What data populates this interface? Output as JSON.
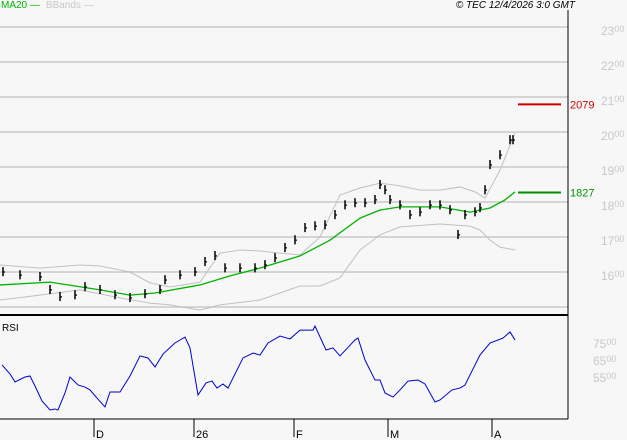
{
  "legend": {
    "ma": "MA20",
    "bb": "BBands"
  },
  "copyright": "© TEC 12/4/2026 3:0 GMT",
  "colors": {
    "ma": "#00b400",
    "bands": "#c0c0c0",
    "bars": "#000000",
    "rsi": "#0000d0",
    "resistance": "#cc0000",
    "support": "#009000"
  },
  "chart_data": {
    "type": "bar",
    "title": "",
    "price_axis": {
      "ylim": [
        1500,
        2300
      ],
      "ticks": [
        "2300",
        "2200",
        "2100",
        "2000",
        "1900",
        "1800",
        "1700",
        "1600"
      ]
    },
    "x_labels": [
      {
        "label": "D",
        "index": 23.5
      },
      {
        "label": "26",
        "index": 48.5
      },
      {
        "label": "F",
        "index": 73.5
      },
      {
        "label": "M",
        "index": 97
      },
      {
        "label": "A",
        "index": 123
      }
    ],
    "closes": [
      [
        0.75,
        1600
      ],
      [
        5,
        1591
      ],
      [
        10,
        1586
      ],
      [
        12.5,
        1549
      ],
      [
        15,
        1529
      ],
      [
        18.75,
        1534
      ],
      [
        21.25,
        1557
      ],
      [
        25,
        1549
      ],
      [
        28.75,
        1534
      ],
      [
        32.5,
        1526
      ],
      [
        36.25,
        1537
      ],
      [
        40,
        1549
      ],
      [
        41.25,
        1577
      ],
      [
        45,
        1591
      ],
      [
        48.75,
        1600
      ],
      [
        51.25,
        1629
      ],
      [
        53.75,
        1646
      ],
      [
        56.25,
        1611
      ],
      [
        60,
        1611
      ],
      [
        63.75,
        1611
      ],
      [
        66.25,
        1620
      ],
      [
        68.75,
        1640
      ],
      [
        71.25,
        1669
      ],
      [
        73.75,
        1691
      ],
      [
        76.25,
        1726
      ],
      [
        78.75,
        1731
      ],
      [
        81.25,
        1734
      ],
      [
        83.75,
        1763
      ],
      [
        86.25,
        1791
      ],
      [
        88.75,
        1797
      ],
      [
        91.25,
        1797
      ],
      [
        93.75,
        1806
      ],
      [
        95,
        1849
      ],
      [
        96.25,
        1834
      ],
      [
        97.5,
        1806
      ],
      [
        100,
        1791
      ],
      [
        102.5,
        1763
      ],
      [
        105,
        1771
      ],
      [
        107.5,
        1791
      ],
      [
        110,
        1791
      ],
      [
        112.5,
        1777
      ],
      [
        114.5,
        1706
      ],
      [
        116.25,
        1763
      ],
      [
        118.75,
        1771
      ],
      [
        120,
        1783
      ],
      [
        121.25,
        1834
      ],
      [
        122.5,
        1906
      ],
      [
        125,
        1934
      ],
      [
        127.5,
        1977
      ],
      [
        128.25,
        1977
      ]
    ],
    "ma20": [
      [
        0,
        1563
      ],
      [
        12.5,
        1571
      ],
      [
        25,
        1549
      ],
      [
        32.5,
        1534
      ],
      [
        38.75,
        1540
      ],
      [
        50,
        1563
      ],
      [
        57.5,
        1589
      ],
      [
        65,
        1611
      ],
      [
        75,
        1646
      ],
      [
        82.5,
        1691
      ],
      [
        90,
        1754
      ],
      [
        95,
        1777
      ],
      [
        100,
        1786
      ],
      [
        110,
        1786
      ],
      [
        117.5,
        1771
      ],
      [
        122.5,
        1783
      ],
      [
        126.25,
        1806
      ],
      [
        128.75,
        1829
      ]
    ],
    "bb_upper": [
      [
        0,
        1620
      ],
      [
        10,
        1611
      ],
      [
        20,
        1620
      ],
      [
        25,
        1617
      ],
      [
        32.5,
        1600
      ],
      [
        37.5,
        1569
      ],
      [
        42.5,
        1557
      ],
      [
        50,
        1571
      ],
      [
        55,
        1654
      ],
      [
        60,
        1663
      ],
      [
        65,
        1660
      ],
      [
        70,
        1654
      ],
      [
        75,
        1649
      ],
      [
        80,
        1700
      ],
      [
        85,
        1820
      ],
      [
        90,
        1840
      ],
      [
        95,
        1854
      ],
      [
        100,
        1846
      ],
      [
        105,
        1834
      ],
      [
        110,
        1834
      ],
      [
        115,
        1843
      ],
      [
        118.75,
        1829
      ],
      [
        121.25,
        1811
      ],
      [
        125,
        1891
      ],
      [
        128.75,
        1997
      ]
    ],
    "bb_lower": [
      [
        0,
        1520
      ],
      [
        10,
        1534
      ],
      [
        20,
        1549
      ],
      [
        30,
        1526
      ],
      [
        37.5,
        1511
      ],
      [
        42.5,
        1506
      ],
      [
        50,
        1491
      ],
      [
        55,
        1506
      ],
      [
        65,
        1520
      ],
      [
        75,
        1560
      ],
      [
        80,
        1560
      ],
      [
        85,
        1583
      ],
      [
        87.5,
        1623
      ],
      [
        90,
        1663
      ],
      [
        95,
        1706
      ],
      [
        100,
        1729
      ],
      [
        110,
        1737
      ],
      [
        117.5,
        1731
      ],
      [
        120,
        1720
      ],
      [
        122.5,
        1691
      ],
      [
        125,
        1671
      ],
      [
        128.75,
        1663
      ]
    ],
    "levels": [
      {
        "label": "2079",
        "value": 2079,
        "kind": "resistance"
      },
      {
        "label": "1827",
        "value": 1827,
        "kind": "support"
      }
    ],
    "rsi": {
      "label": "RSI",
      "ticks": [
        "7500",
        "6500",
        "5500"
      ],
      "tick_values": [
        75,
        65,
        55
      ],
      "values": [
        [
          0.5,
          62.1
        ],
        [
          2.5,
          56.8
        ],
        [
          3.75,
          52.1
        ],
        [
          6.25,
          55
        ],
        [
          7.5,
          55.6
        ],
        [
          8.75,
          49.7
        ],
        [
          10.5,
          40.9
        ],
        [
          12.5,
          35.6
        ],
        [
          13.75,
          36.2
        ],
        [
          14.5,
          35.6
        ],
        [
          16.25,
          45.6
        ],
        [
          17.5,
          55
        ],
        [
          19.5,
          50.3
        ],
        [
          21.25,
          49.1
        ],
        [
          22.5,
          47.4
        ],
        [
          24.25,
          42.6
        ],
        [
          26.25,
          37.4
        ],
        [
          27.5,
          46.2
        ],
        [
          30,
          46.2
        ],
        [
          32.5,
          55.6
        ],
        [
          35,
          67.4
        ],
        [
          37,
          66.2
        ],
        [
          38.75,
          60.9
        ],
        [
          40.75,
          68.5
        ],
        [
          43.75,
          75
        ],
        [
          46.25,
          78.5
        ],
        [
          47.5,
          72.1
        ],
        [
          49.5,
          44.4
        ],
        [
          51.5,
          51.5
        ],
        [
          53,
          52.6
        ],
        [
          54.25,
          48.5
        ],
        [
          55.75,
          50.9
        ],
        [
          57,
          48.5
        ],
        [
          60.75,
          66.2
        ],
        [
          63.25,
          69.1
        ],
        [
          65,
          67.9
        ],
        [
          67,
          75
        ],
        [
          70,
          79.1
        ],
        [
          72.5,
          77.4
        ],
        [
          75,
          82.6
        ],
        [
          78.25,
          82.6
        ],
        [
          78.75,
          85
        ],
        [
          81.5,
          70.9
        ],
        [
          83.25,
          72.1
        ],
        [
          85,
          67.4
        ],
        [
          88.75,
          76.8
        ],
        [
          89.5,
          77.9
        ],
        [
          91.25,
          65
        ],
        [
          93.75,
          53.2
        ],
        [
          95,
          53.2
        ],
        [
          96.25,
          45.6
        ],
        [
          98.25,
          43.2
        ],
        [
          100,
          47.4
        ],
        [
          102,
          52.6
        ],
        [
          104.5,
          53.2
        ],
        [
          106.25,
          50.9
        ],
        [
          108.75,
          40.3
        ],
        [
          110,
          41.5
        ],
        [
          113,
          47.4
        ],
        [
          115,
          48.5
        ],
        [
          116.25,
          50.3
        ],
        [
          117.5,
          56.2
        ],
        [
          120,
          67.9
        ],
        [
          122.5,
          75
        ],
        [
          125.75,
          77.9
        ],
        [
          127.5,
          81.5
        ],
        [
          128.75,
          76.8
        ]
      ]
    }
  }
}
